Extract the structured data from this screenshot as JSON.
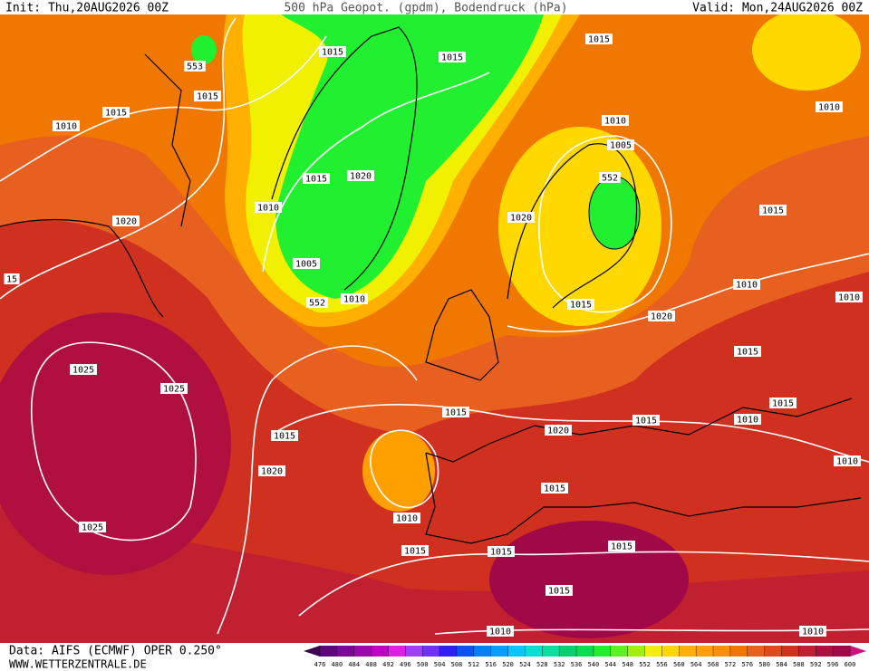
{
  "header": {
    "init": "Init: Thu,20AUG2026 00Z",
    "title": "500 hPa Geopot. (gpdm), Bodendruck (hPa)",
    "valid": "Valid: Mon,24AUG2026 00Z"
  },
  "isobar_labels": [
    553,
    1015,
    1015,
    1015,
    1015,
    1015,
    1010,
    1010,
    1005,
    1010,
    1015,
    1020,
    1010,
    1020,
    1020,
    552,
    1015,
    1005,
    552,
    1010,
    15,
    1010,
    1010,
    1015,
    1020,
    1015,
    1025,
    1025,
    1015,
    1010,
    1015,
    1015,
    1020,
    1015,
    1010,
    1020,
    1015,
    1010,
    1025,
    1015,
    1015,
    1015,
    1015,
    1010,
    1010
  ],
  "scale": {
    "ticks": [
      476,
      480,
      484,
      488,
      492,
      496,
      500,
      504,
      508,
      512,
      516,
      520,
      524,
      528,
      532,
      536,
      540,
      544,
      548,
      552,
      556,
      560,
      564,
      568,
      572,
      576,
      580,
      584,
      588,
      592,
      596,
      600
    ],
    "colors": [
      "#3c0050",
      "#5a0a78",
      "#7a0a96",
      "#9b0aa8",
      "#c000c0",
      "#e020e0",
      "#a040ff",
      "#7030ff",
      "#3020ff",
      "#1050ff",
      "#0080ff",
      "#00a0ff",
      "#00c8ff",
      "#00e0d0",
      "#00e0a0",
      "#00d070",
      "#00e050",
      "#20f030",
      "#60f020",
      "#a0f000",
      "#f0f000",
      "#ffd800",
      "#ffb000",
      "#ffa000",
      "#f89000",
      "#f07800",
      "#e86020",
      "#e04820",
      "#d03020",
      "#c02030",
      "#b01040",
      "#a00848",
      "#d0107a"
    ]
  },
  "footer": {
    "source": "Data: AIFS (ECMWF) OPER 0.250°",
    "website": "WWW.WETTERZENTRALE.DE"
  }
}
